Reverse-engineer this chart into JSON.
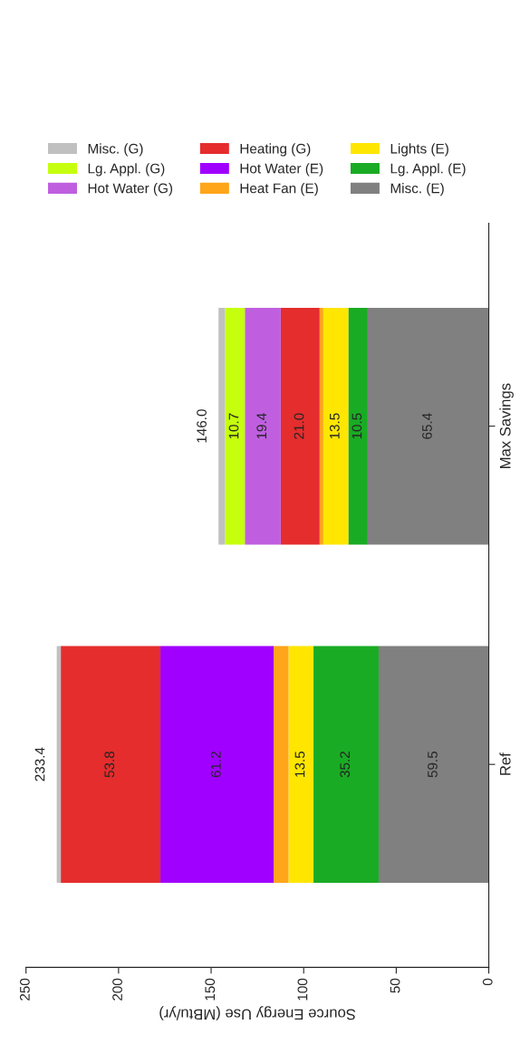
{
  "chart_data": {
    "type": "bar",
    "orientation": "horizontal",
    "stacked": true,
    "categories": [
      "Max Savings",
      "Ref"
    ],
    "xlabel": "Source Energy Use (MBtu/yr)",
    "xlim": [
      250,
      0
    ],
    "xticks": [
      0,
      50,
      100,
      150,
      200,
      250
    ],
    "series": [
      {
        "name": "Misc. (E)",
        "color": "#808080",
        "values": [
          65.4,
          59.5
        ],
        "value_labels": [
          "65.4",
          "59.5"
        ]
      },
      {
        "name": "Lg. Appl. (E)",
        "color": "#1aab24",
        "values": [
          10.5,
          35.2
        ],
        "value_labels": [
          "10.5",
          "35.2"
        ]
      },
      {
        "name": "Lights (E)",
        "color": "#ffe600",
        "values": [
          13.5,
          13.5
        ],
        "value_labels": [
          "13.5",
          "13.5"
        ]
      },
      {
        "name": "Heat Fan (E)",
        "color": "#ffa51a",
        "values": [
          2.0,
          8.0
        ],
        "value_labels": [
          null,
          null
        ]
      },
      {
        "name": "Hot Water (E)",
        "color": "#a000ff",
        "values": [
          null,
          61.2
        ],
        "value_labels": [
          null,
          "61.2"
        ]
      },
      {
        "name": "Heating (G)",
        "color": "#e52d2d",
        "values": [
          21.0,
          53.8
        ],
        "value_labels": [
          "21.0",
          "53.8"
        ]
      },
      {
        "name": "Hot Water (G)",
        "color": "#bf5fe0",
        "values": [
          19.4,
          null
        ],
        "value_labels": [
          "19.4",
          null
        ]
      },
      {
        "name": "Lg. Appl. (G)",
        "color": "#c6ff0d",
        "values": [
          10.7,
          null
        ],
        "value_labels": [
          "10.7",
          null
        ]
      },
      {
        "name": "Misc. (G)",
        "color": "#c0c0c0",
        "values": [
          3.5,
          2.2
        ],
        "value_labels": [
          null,
          null
        ]
      }
    ],
    "totals": [
      "146.0",
      "233.4"
    ],
    "legend": "top",
    "grid": false
  }
}
